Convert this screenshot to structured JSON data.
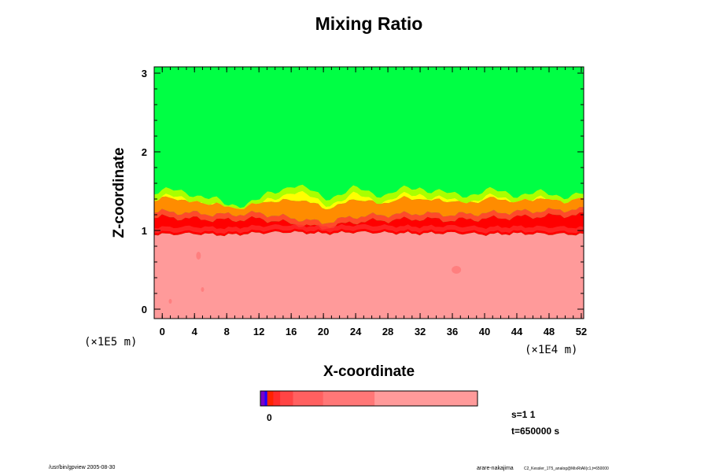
{
  "chart_data": {
    "type": "heatmap",
    "title": "Mixing Ratio",
    "xlabel": "X-coordinate",
    "ylabel": "Z-coordinate",
    "x_scale_label": "(×1E4 m)",
    "y_scale_label": "(×1E5 m)",
    "xlim": [
      -1,
      52.3
    ],
    "ylim": [
      -0.12,
      3.08
    ],
    "x_ticks": [
      0,
      4,
      8,
      12,
      16,
      20,
      24,
      28,
      32,
      36,
      40,
      44,
      48,
      52
    ],
    "y_ticks": [
      0,
      1,
      2,
      3
    ],
    "x_minor_step": 1,
    "y_minor_step": 0.2,
    "colors": {
      "upper": "#00ff44",
      "lower": "#ff9a9a",
      "interface_core": "#ff0000",
      "interface_mid": "#ff4a2a",
      "transition_orange": "#ff8c00",
      "transition_yellow": "#ffff00",
      "transition_lightgreen": "#aaff00"
    },
    "layers": {
      "upper_value_region": "above interface",
      "interface_z_mean": 1.05,
      "green_onset_z": [
        1.5,
        1.48,
        1.32,
        1.38,
        1.6,
        1.42,
        1.52,
        1.46,
        1.56,
        1.44,
        1.5,
        1.47,
        1.45
      ],
      "green_onset_x": [
        0,
        4,
        8,
        12,
        16,
        20,
        24,
        28,
        32,
        36,
        40,
        44,
        52
      ],
      "red_band_top_z": [
        1.22,
        1.2,
        1.18,
        1.2,
        1.14,
        1.08,
        1.16,
        1.18,
        1.2,
        1.18,
        1.2,
        1.22,
        1.25
      ],
      "red_band_bottom_z": [
        0.95,
        0.96,
        0.94,
        0.97,
        0.98,
        0.96,
        0.98,
        0.97,
        0.96,
        0.97,
        0.95,
        0.96,
        0.95
      ]
    },
    "colorbar": {
      "label_zero": "0",
      "segments": [
        {
          "color": "#7a00c8",
          "weight": 1
        },
        {
          "color": "#2200ff",
          "weight": 0.6
        },
        {
          "color": "#ff2200",
          "weight": 1.4
        },
        {
          "color": "#ff2a2a",
          "weight": 1.6
        },
        {
          "color": "#ff4444",
          "weight": 3
        },
        {
          "color": "#ff6060",
          "weight": 7
        },
        {
          "color": "#ff7777",
          "weight": 12
        },
        {
          "color": "#ff9a9a",
          "weight": 24
        }
      ]
    },
    "info_lines": [
      "s=1 1",
      "t=650000 s"
    ]
  },
  "footer": {
    "left": "/usr/bin/gpview 2005-08-30",
    "right_name": "arare-nakajima",
    "right_detail": "C2_Kessler_1T5_analog@MixRtAll(c1,t=650000"
  }
}
